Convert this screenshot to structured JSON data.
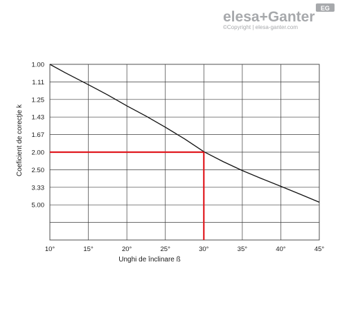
{
  "brand": {
    "wordmark": "elesa+Ganter",
    "badge": "EG",
    "copyright": "©Copyright | elesa-ganter.com"
  },
  "colors": {
    "curve": "#111111",
    "grid": "#3a3a3a",
    "highlight": "#e0191f",
    "logo_gray": "#a7a9ac",
    "text": "#1a1a1a"
  },
  "chart_data": {
    "type": "line",
    "title": "",
    "xlabel": "Unghi de înclinare ß",
    "ylabel": "Coeficient de corecţie k",
    "x_ticks": [
      10,
      15,
      20,
      25,
      30,
      35,
      40,
      45
    ],
    "x_tick_labels": [
      "10°",
      "15°",
      "20°",
      "25°",
      "30°",
      "35°",
      "40°",
      "45°"
    ],
    "xlim": [
      10,
      45
    ],
    "y_ticks": [
      1.0,
      1.11,
      1.25,
      1.43,
      1.67,
      2.0,
      2.5,
      3.33,
      5.0
    ],
    "y_tick_labels": [
      "1.00",
      "1.11",
      "1.25",
      "1.43",
      "1.67",
      "2.00",
      "2.50",
      "3.33",
      "5.00"
    ],
    "y_scale": "reciprocal",
    "grid": true,
    "series": [
      {
        "x": [
          10,
          12,
          15,
          17.5,
          20,
          22.5,
          25,
          27.5,
          30,
          32.5,
          35,
          37.5,
          40,
          42.5,
          45
        ],
        "y": [
          1.0,
          1.05,
          1.13,
          1.21,
          1.31,
          1.42,
          1.56,
          1.74,
          1.99,
          2.24,
          2.53,
          2.86,
          3.27,
          3.83,
          4.65
        ]
      }
    ],
    "annotations": [
      {
        "type": "reference-lines",
        "x": 30,
        "y": 2.0
      }
    ]
  }
}
